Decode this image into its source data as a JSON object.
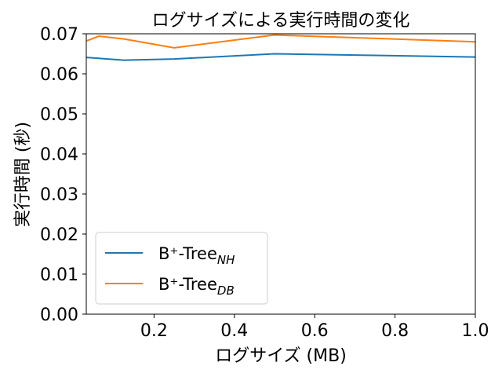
{
  "chart_data": {
    "type": "line",
    "title": "ログサイズによる実行時間の変化",
    "xlabel": "ログサイズ (MB)",
    "ylabel": "実行時間 (秒)",
    "xlim": [
      0.03125,
      1.0
    ],
    "ylim": [
      0.0,
      0.07
    ],
    "xticks": [
      "0.2",
      "0.4",
      "0.6",
      "0.8",
      "1.0"
    ],
    "yticks": [
      "0.00",
      "0.01",
      "0.02",
      "0.03",
      "0.04",
      "0.05",
      "0.06",
      "0.07"
    ],
    "grid": false,
    "legend_position": "lower-left",
    "series": [
      {
        "name": "B⁺-Tree",
        "name_sub": "NH",
        "color": "#1f77b4",
        "x": [
          0.03125,
          0.125,
          0.25,
          0.5,
          1.0
        ],
        "values": [
          0.0641,
          0.0634,
          0.0637,
          0.065,
          0.0642
        ]
      },
      {
        "name": "B⁺-Tree",
        "name_sub": "DB",
        "color": "#ff7f0e",
        "x": [
          0.03125,
          0.0625,
          0.125,
          0.25,
          0.5,
          1.0
        ],
        "values": [
          0.0682,
          0.0694,
          0.0687,
          0.0665,
          0.0697,
          0.068
        ]
      }
    ]
  }
}
